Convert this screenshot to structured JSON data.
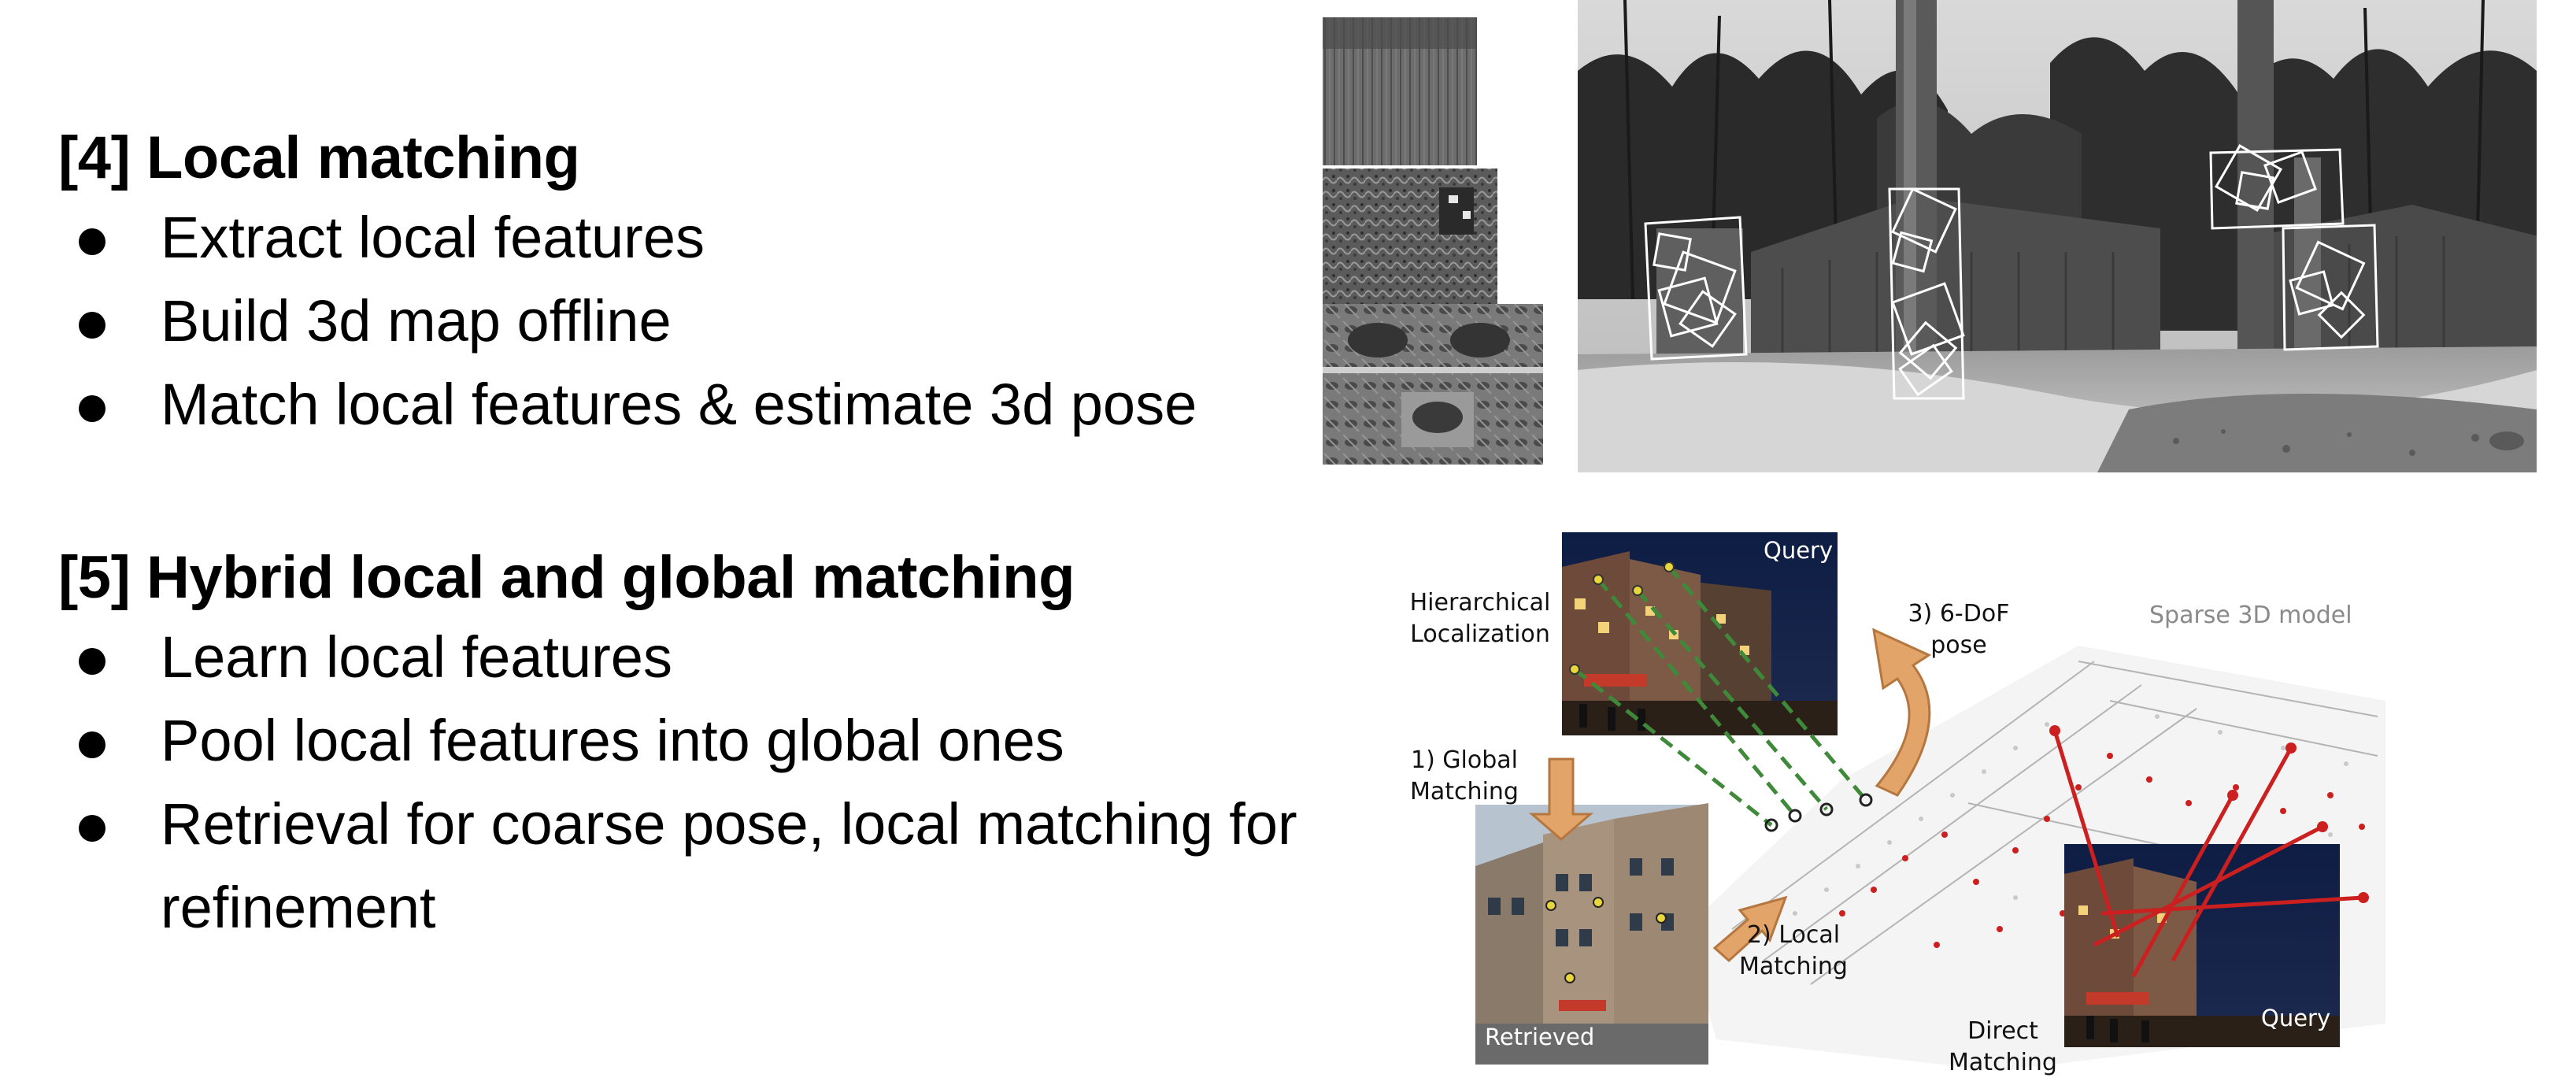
{
  "slide": {
    "local": {
      "heading": "[4] Local matching",
      "bullets": [
        "Extract local features",
        "Build 3d map offline",
        "Match local features & estimate 3d pose"
      ]
    },
    "hybrid": {
      "heading": "[5] Hybrid local and global matching",
      "bullets": [
        "Learn local features",
        "Pool local features into global ones",
        "Retrieval for coarse pose, local matching for refinement"
      ]
    }
  },
  "diagram": {
    "query_label": "Query",
    "retrieved_label": "Retrieved",
    "query_label_bottom": "Query",
    "hierarchical": "Hierarchical Localization",
    "global_matching": "1) Global Matching",
    "local_matching": "2) Local Matching",
    "pose": "3) 6-DoF pose",
    "sparse_model": "Sparse 3D model",
    "direct_matching": "Direct Matching"
  },
  "colors": {
    "text": "#000000",
    "arrow": "#e3a46a",
    "red_match": "#cc1f1f",
    "green_match": "#3e8a3a",
    "night_sky": "#0e1d44"
  }
}
